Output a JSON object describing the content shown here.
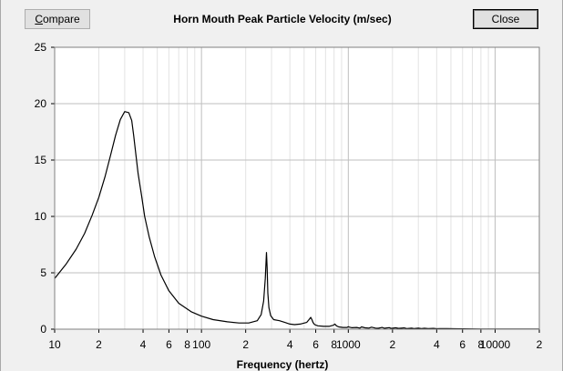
{
  "toolbar": {
    "compare_label": "Compare",
    "close_label": "Close"
  },
  "chart_data": {
    "type": "line",
    "title": "Horn Mouth Peak Particle Velocity (m/sec)",
    "xlabel": "Frequency (hertz)",
    "ylabel": "",
    "xscale": "log",
    "xlim": [
      10,
      20000
    ],
    "ylim": [
      0,
      25
    ],
    "grid": true,
    "yticks": [
      0,
      5,
      10,
      15,
      20,
      25
    ],
    "xtick_labels": [
      {
        "v": 10,
        "t": "10"
      },
      {
        "v": 20,
        "t": "2"
      },
      {
        "v": 40,
        "t": "4"
      },
      {
        "v": 60,
        "t": "6"
      },
      {
        "v": 80,
        "t": "8"
      },
      {
        "v": 100,
        "t": "100"
      },
      {
        "v": 200,
        "t": "2"
      },
      {
        "v": 400,
        "t": "4"
      },
      {
        "v": 600,
        "t": "6"
      },
      {
        "v": 800,
        "t": "8"
      },
      {
        "v": 1000,
        "t": "1000"
      },
      {
        "v": 2000,
        "t": "2"
      },
      {
        "v": 4000,
        "t": "4"
      },
      {
        "v": 6000,
        "t": "6"
      },
      {
        "v": 8000,
        "t": "8"
      },
      {
        "v": 10000,
        "t": "10000"
      },
      {
        "v": 20000,
        "t": "2"
      }
    ],
    "series": [
      {
        "color": "#000000",
        "x": [
          10,
          12,
          14,
          16,
          18,
          20,
          22,
          24,
          26,
          28,
          30,
          32,
          33.5,
          34.5,
          35.5,
          37,
          39,
          41,
          44,
          48,
          53,
          60,
          70,
          85,
          100,
          120,
          150,
          180,
          210,
          240,
          255,
          265,
          272,
          277,
          280,
          283,
          288,
          296,
          310,
          340,
          370,
          400,
          430,
          470,
          520,
          540,
          555,
          565,
          575,
          590,
          620,
          680,
          740,
          790,
          810,
          830,
          860,
          920,
          980,
          1000,
          1020,
          1060,
          1140,
          1200,
          1230,
          1300,
          1380,
          1440,
          1530,
          1600,
          1700,
          1760,
          1900,
          1960,
          2100,
          2200,
          2400,
          2500,
          2700,
          2800,
          3000,
          3150,
          3300,
          3500,
          3800,
          4000,
          4200,
          4700,
          5200,
          6000,
          8000,
          10000,
          15000,
          20000
        ],
        "y": [
          4.5,
          5.8,
          7.1,
          8.5,
          10.1,
          11.7,
          13.5,
          15.4,
          17.2,
          18.6,
          19.3,
          19.2,
          18.5,
          17.2,
          15.8,
          13.8,
          11.9,
          10.0,
          8.2,
          6.4,
          4.8,
          3.4,
          2.3,
          1.55,
          1.15,
          0.85,
          0.65,
          0.55,
          0.55,
          0.75,
          1.3,
          2.5,
          4.5,
          6.8,
          5.5,
          3.2,
          1.9,
          1.2,
          0.85,
          0.75,
          0.6,
          0.45,
          0.4,
          0.45,
          0.6,
          0.85,
          1.05,
          0.85,
          0.6,
          0.4,
          0.3,
          0.25,
          0.25,
          0.35,
          0.45,
          0.3,
          0.2,
          0.15,
          0.15,
          0.22,
          0.18,
          0.13,
          0.15,
          0.1,
          0.2,
          0.12,
          0.1,
          0.18,
          0.1,
          0.08,
          0.15,
          0.08,
          0.14,
          0.07,
          0.12,
          0.07,
          0.11,
          0.06,
          0.1,
          0.06,
          0.09,
          0.05,
          0.08,
          0.05,
          0.07,
          0.04,
          0.06,
          0.05,
          0.04,
          0.03,
          0.02,
          0.02,
          0.01,
          0.01
        ]
      }
    ]
  }
}
